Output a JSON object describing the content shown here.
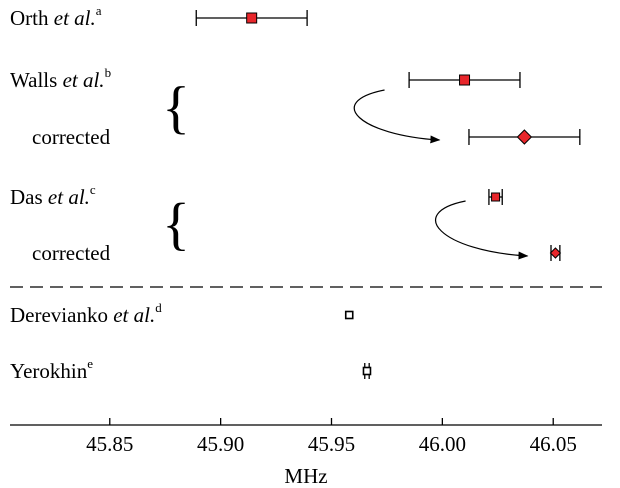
{
  "chart_data": {
    "type": "scatter",
    "xlabel": "MHz",
    "xlim": [
      45.805,
      46.072
    ],
    "xticks": [
      45.85,
      45.9,
      45.95,
      46.0,
      46.05
    ],
    "xtick_labels": [
      "45.85",
      "45.90",
      "45.95",
      "46.00",
      "46.05"
    ],
    "rows": [
      {
        "id": "orth",
        "name": "Orth",
        "suffix": "et al.",
        "sup": "a",
        "value": 45.914,
        "err": 0.025,
        "marker": "filled-square"
      },
      {
        "id": "walls",
        "name": "Walls",
        "suffix": "et al.",
        "sup": "b",
        "value": 46.01,
        "err": 0.025,
        "marker": "filled-square"
      },
      {
        "id": "walls-corr",
        "name": "corrected",
        "suffix": "",
        "sup": "",
        "value": 46.037,
        "err": 0.025,
        "marker": "filled-diamond"
      },
      {
        "id": "das",
        "name": "Das",
        "suffix": "et al.",
        "sup": "c",
        "value": 46.024,
        "err": 0.003,
        "marker": "filled-square"
      },
      {
        "id": "das-corr",
        "name": "corrected",
        "suffix": "",
        "sup": "",
        "value": 46.051,
        "err": 0.002,
        "marker": "filled-diamond"
      },
      {
        "id": "derevianko",
        "name": "Derevianko",
        "suffix": "et al.",
        "sup": "d",
        "value": 45.958,
        "err": 0,
        "marker": "open-square"
      },
      {
        "id": "yerokhin",
        "name": "Yerokhin",
        "suffix": "",
        "sup": "e",
        "value": 45.966,
        "err": 0.001,
        "marker": "open-square"
      }
    ],
    "corrections": [
      {
        "from": "walls",
        "to": "walls-corr"
      },
      {
        "from": "das",
        "to": "das-corr"
      }
    ],
    "separator": "dashed line between experiment and theory",
    "grid": false,
    "legend": "none"
  },
  "colors": {
    "marker_fill": "#e8262b",
    "ink": "#000000",
    "background": "#ffffff"
  }
}
